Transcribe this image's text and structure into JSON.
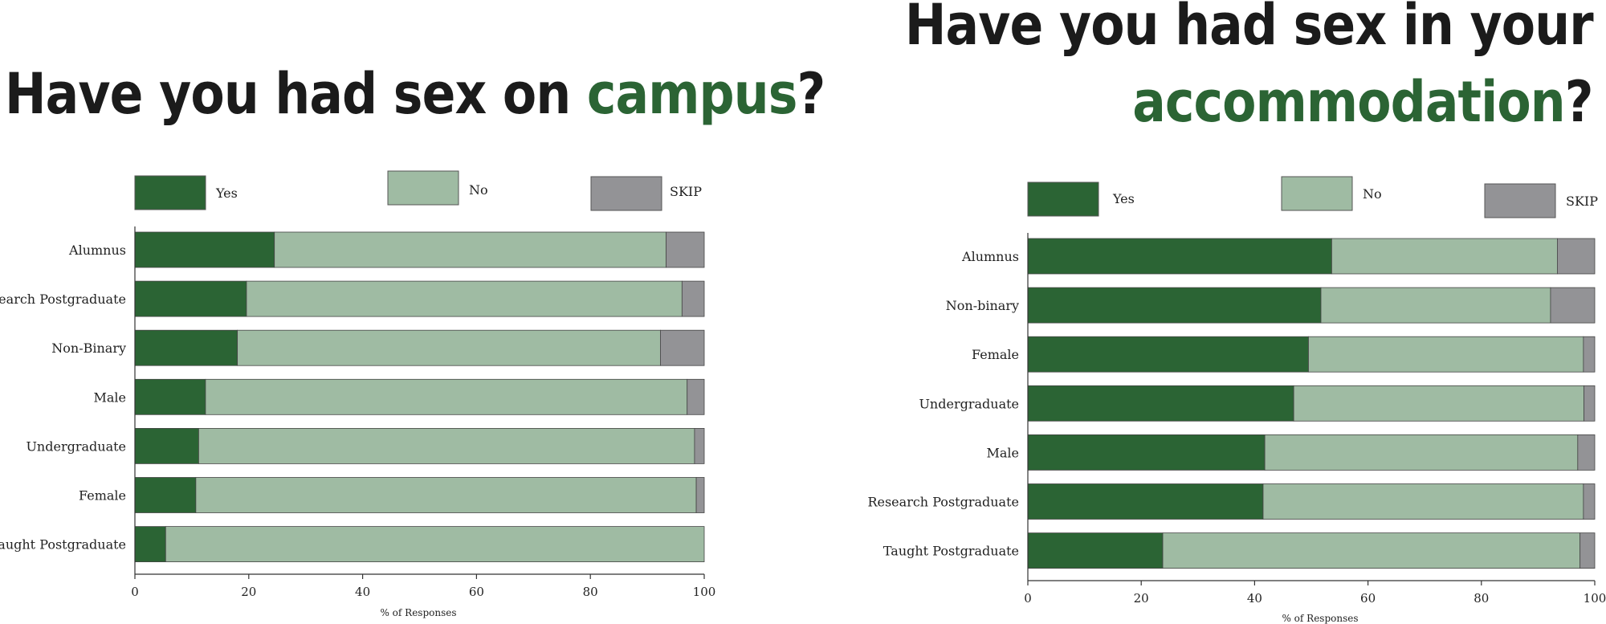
{
  "titles": {
    "left": {
      "before": "Have you had sex on ",
      "highlight": "campus",
      "after": "?"
    },
    "right": {
      "line1": "Have you had sex in your",
      "highlight": "accommodation",
      "after": "?"
    }
  },
  "colors": {
    "yes": "#2b6434",
    "no": "#9fbba3",
    "skip": "#939396",
    "highlight": "#2b6434"
  },
  "chart_data": [
    {
      "type": "bar",
      "orientation": "horizontal",
      "stacked": true,
      "title": "Have you had sex on campus?",
      "categories": [
        "Alumnus",
        "Research Postgraduate",
        "Non-Binary",
        "Male",
        "Undergraduate",
        "Female",
        "Taught Postgraduate"
      ],
      "series": [
        {
          "name": "Yes",
          "values": [
            24.5,
            19.6,
            18.0,
            12.4,
            11.2,
            10.7,
            5.4
          ]
        },
        {
          "name": "No",
          "values": [
            68.8,
            76.5,
            74.3,
            84.6,
            87.1,
            87.9,
            94.6
          ]
        },
        {
          "name": "SKIP",
          "values": [
            6.7,
            3.9,
            7.7,
            3.0,
            1.7,
            1.4,
            0.0
          ]
        }
      ],
      "xlabel": "% of Responses",
      "xlim": [
        0,
        100
      ],
      "xticks": [
        0,
        20,
        40,
        60,
        80,
        100
      ],
      "legend": "top",
      "grid": false
    },
    {
      "type": "bar",
      "orientation": "horizontal",
      "stacked": true,
      "title": "Have you had sex in your accommodation?",
      "categories": [
        "Alumnus",
        "Non-binary",
        "Female",
        "Undergraduate",
        "Male",
        "Research Postgraduate",
        "Taught Postgraduate"
      ],
      "series": [
        {
          "name": "Yes",
          "values": [
            53.6,
            51.7,
            49.5,
            46.9,
            41.8,
            41.5,
            23.8
          ]
        },
        {
          "name": "No",
          "values": [
            39.8,
            40.5,
            48.5,
            51.2,
            55.2,
            56.5,
            73.6
          ]
        },
        {
          "name": "SKIP",
          "values": [
            6.6,
            7.8,
            2.0,
            1.9,
            3.0,
            2.0,
            2.6
          ]
        }
      ],
      "xlabel": "% of Responses",
      "xlim": [
        0,
        100
      ],
      "xticks": [
        0,
        20,
        40,
        60,
        80,
        100
      ],
      "legend": "top",
      "grid": false
    }
  ]
}
